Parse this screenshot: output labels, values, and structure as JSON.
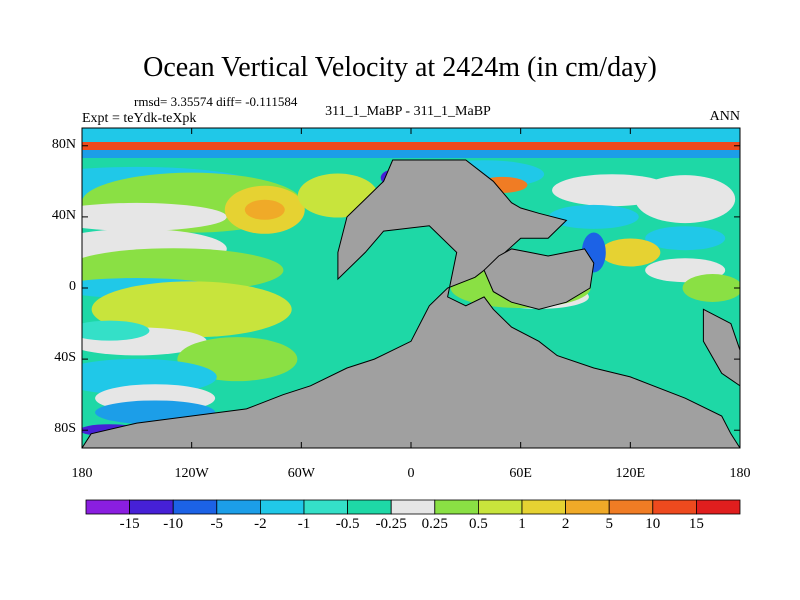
{
  "chart_data": {
    "type": "heatmap",
    "title": "Ocean Vertical Velocity at 2424m (in cm/day)",
    "stats_text": "rmsd= 3.35574 diff= -0.111584",
    "left_label": "Expt = teYdk-teXpk",
    "center_label": "311_1_MaBP - 311_1_MaBP",
    "right_label": "ANN",
    "x_axis": {
      "ticks": [
        "180",
        "120W",
        "60W",
        "0",
        "60E",
        "120E",
        "180"
      ],
      "lon_range": [
        -180,
        180
      ]
    },
    "y_axis": {
      "ticks": [
        "80N",
        "40N",
        "0",
        "40S",
        "80S"
      ],
      "lat_range": [
        -90,
        90
      ]
    },
    "colorbar": {
      "levels": [
        "-15",
        "-10",
        "-5",
        "-2",
        "-1",
        "-0.5",
        "-0.25",
        "0.25",
        "0.5",
        "1",
        "2",
        "5",
        "10",
        "15"
      ],
      "colors": [
        "#8a1ee0",
        "#4620d6",
        "#1c62e6",
        "#1c9ee8",
        "#20c8e8",
        "#34e0c8",
        "#1ed8a6",
        "#e6e6e6",
        "#8ae044",
        "#c8e43c",
        "#e6d232",
        "#f0aa28",
        "#f07c24",
        "#ee4a1e",
        "#e01e1e"
      ]
    },
    "land_color": "#a0a0a0"
  }
}
